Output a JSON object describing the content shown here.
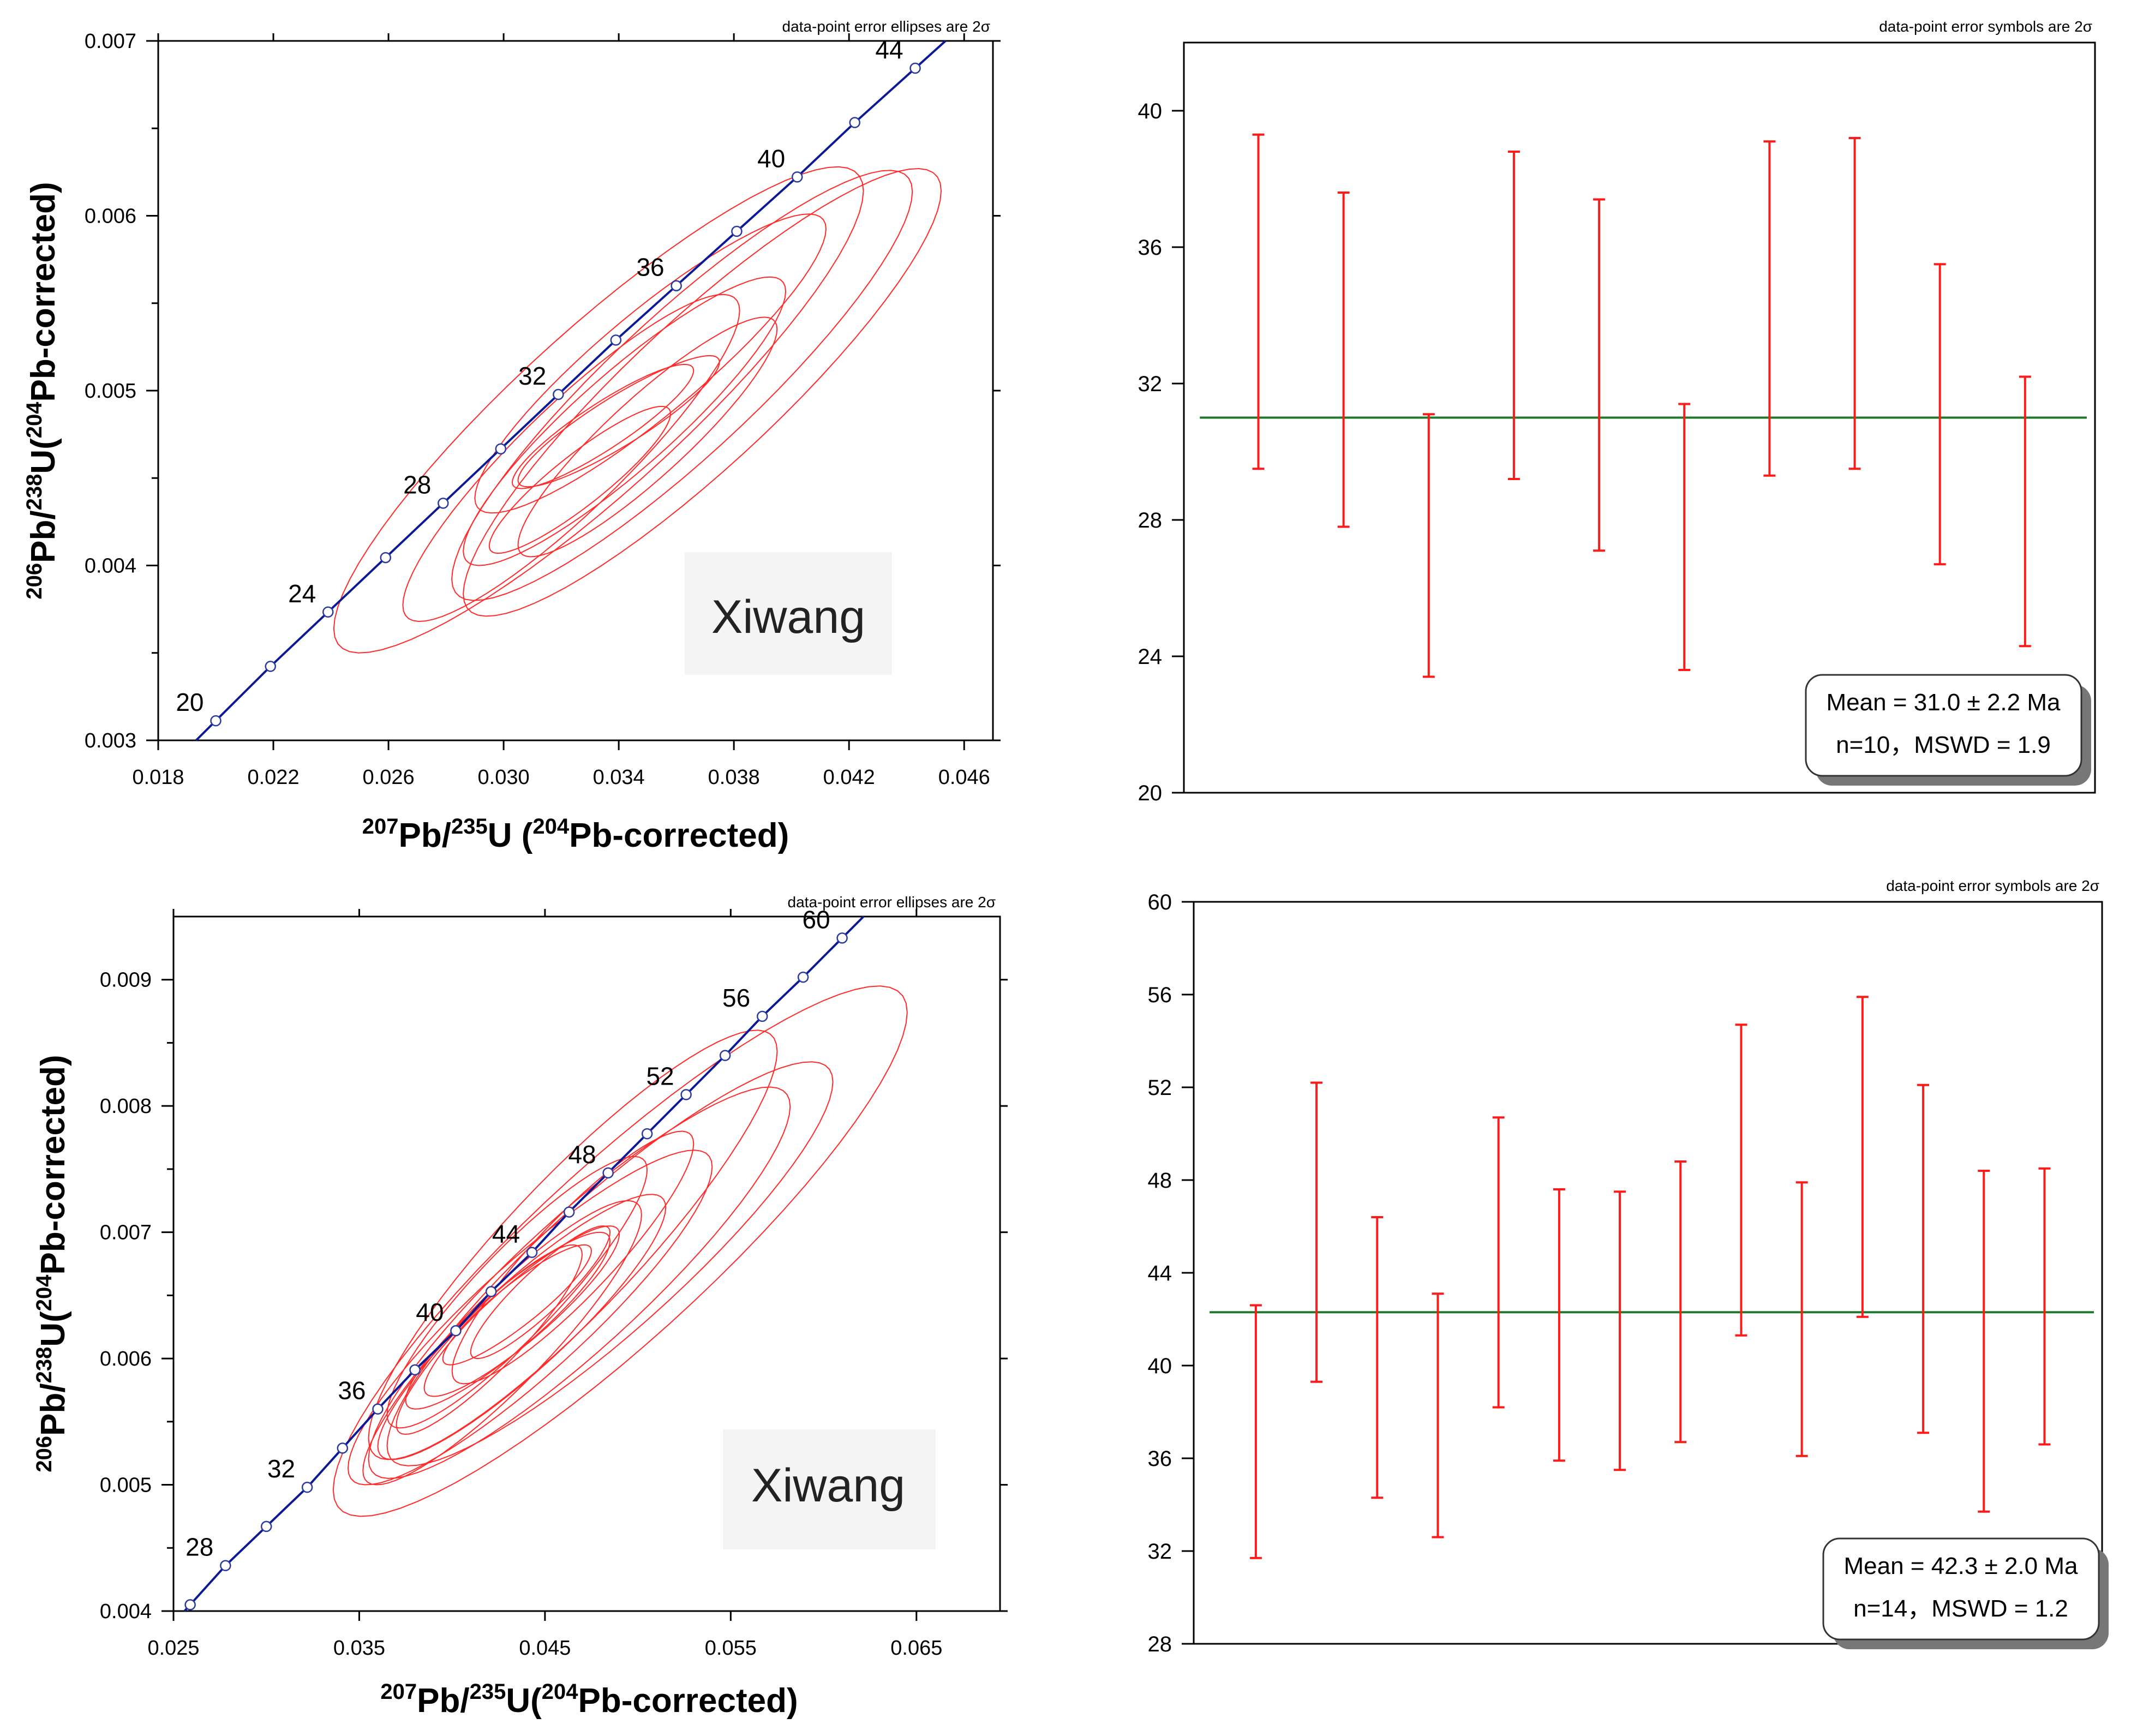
{
  "colors": {
    "concordia": "#0a1a96",
    "marker_fill": "#ffffff",
    "marker_stroke": "#2a3aa0",
    "ellipse": "#ff2a2a",
    "error_bar": "#ff1a1a",
    "mean_line": "#1d7a2a",
    "axis": "#000000",
    "watermark_bg": "#f4f4f4"
  },
  "chart_data": [
    {
      "id": "concordia_top",
      "type": "scatter",
      "subtype": "concordia",
      "note": "data-point error ellipses are 2σ",
      "sample_label": "Xiwang",
      "xlabel": {
        "base": "Pb/",
        "iso1": "207",
        "iso2": "235",
        "u": "U (",
        "iso3": "204",
        "rest": "Pb-corrected)"
      },
      "ylabel": {
        "iso1": "206",
        "base": "Pb/",
        "iso2": "238",
        "u": "U(",
        "iso3": "204",
        "rest": "Pb-corrected)"
      },
      "xlim": [
        0.018,
        0.047
      ],
      "ylim": [
        0.003,
        0.007
      ],
      "x_ticks": [
        "0.018",
        "0.022",
        "0.026",
        "0.030",
        "0.034",
        "0.038",
        "0.042",
        "0.046"
      ],
      "y_ticks": [
        "0.003",
        "0.004",
        "0.005",
        "0.006",
        "0.007"
      ],
      "concordia_labels": [
        {
          "age": "20",
          "x": 0.02,
          "y": 0.003112
        },
        {
          "age": "24",
          "x": 0.0239,
          "y": 0.003734
        },
        {
          "age": "28",
          "x": 0.0279,
          "y": 0.004356
        },
        {
          "age": "32",
          "x": 0.0319,
          "y": 0.004978
        },
        {
          "age": "36",
          "x": 0.036,
          "y": 0.0056
        },
        {
          "age": "40",
          "x": 0.0402,
          "y": 0.006222
        },
        {
          "age": "44",
          "x": 0.0443,
          "y": 0.006844
        }
      ],
      "concordia_markers": [
        {
          "x": 0.02,
          "y": 0.003112
        },
        {
          "x": 0.0219,
          "y": 0.003423
        },
        {
          "x": 0.0239,
          "y": 0.003734
        },
        {
          "x": 0.0259,
          "y": 0.004045
        },
        {
          "x": 0.0279,
          "y": 0.004356
        },
        {
          "x": 0.0299,
          "y": 0.004667
        },
        {
          "x": 0.0319,
          "y": 0.004978
        },
        {
          "x": 0.0339,
          "y": 0.005289
        },
        {
          "x": 0.036,
          "y": 0.0056
        },
        {
          "x": 0.0381,
          "y": 0.005911
        },
        {
          "x": 0.0402,
          "y": 0.006222
        },
        {
          "x": 0.0422,
          "y": 0.006533
        },
        {
          "x": 0.0443,
          "y": 0.006844
        }
      ],
      "ellipses": [
        {
          "x0": 0.0241,
          "x1": 0.0425,
          "y0": 0.0035,
          "y1": 0.00628
        },
        {
          "x0": 0.0265,
          "x1": 0.0382,
          "y0": 0.00368,
          "y1": 0.00555
        },
        {
          "x0": 0.0282,
          "x1": 0.0442,
          "y0": 0.0038,
          "y1": 0.00626
        },
        {
          "x0": 0.0286,
          "x1": 0.0452,
          "y0": 0.00371,
          "y1": 0.00627
        },
        {
          "x0": 0.0286,
          "x1": 0.0398,
          "y0": 0.004,
          "y1": 0.00565
        },
        {
          "x0": 0.029,
          "x1": 0.0412,
          "y0": 0.0043,
          "y1": 0.00601
        },
        {
          "x0": 0.0295,
          "x1": 0.0358,
          "y0": 0.00407,
          "y1": 0.00491
        },
        {
          "x0": 0.0305,
          "x1": 0.0395,
          "y0": 0.00405,
          "y1": 0.00542
        },
        {
          "x0": 0.0303,
          "x1": 0.0366,
          "y0": 0.00444,
          "y1": 0.00515
        },
        {
          "x0": 0.0305,
          "x1": 0.0375,
          "y0": 0.00445,
          "y1": 0.0052
        }
      ]
    },
    {
      "id": "mean_top",
      "type": "errorbar",
      "note": "data-point error symbols are 2σ",
      "ylim": [
        20,
        42
      ],
      "y_ticks": [
        "20",
        "24",
        "28",
        "32",
        "36",
        "40"
      ],
      "mean": 31.0,
      "bars": [
        {
          "low": 29.5,
          "high": 39.3
        },
        {
          "low": 27.8,
          "high": 37.6
        },
        {
          "low": 23.4,
          "high": 31.1
        },
        {
          "low": 29.2,
          "high": 38.8
        },
        {
          "low": 27.1,
          "high": 37.4
        },
        {
          "low": 23.6,
          "high": 31.4
        },
        {
          "low": 29.3,
          "high": 39.1
        },
        {
          "low": 29.5,
          "high": 39.2
        },
        {
          "low": 26.7,
          "high": 35.5
        },
        {
          "low": 24.3,
          "high": 32.2
        }
      ],
      "stats_line1": "Mean = 31.0 ± 2.2 Ma",
      "stats_line2": "n=10，MSWD = 1.9"
    },
    {
      "id": "concordia_bottom",
      "type": "scatter",
      "subtype": "concordia",
      "note": "data-point error ellipses are 2σ",
      "sample_label": "Xiwang",
      "xlabel": {
        "base": "Pb/",
        "iso1": "207",
        "iso2": "235",
        "u": "U(",
        "iso3": "204",
        "rest": "Pb-corrected)"
      },
      "ylabel": {
        "iso1": "206",
        "base": "Pb/",
        "iso2": "238",
        "u": "U(",
        "iso3": "204",
        "rest": "Pb-corrected)"
      },
      "xlim": [
        0.025,
        0.0695
      ],
      "ylim": [
        0.004,
        0.0095
      ],
      "x_ticks": [
        "0.025",
        "0.035",
        "0.045",
        "0.055",
        "0.065"
      ],
      "y_ticks": [
        "0.004",
        "0.005",
        "0.006",
        "0.007",
        "0.008",
        "0.009"
      ],
      "concordia_labels": [
        {
          "age": "28",
          "x": 0.0278,
          "y": 0.00436
        },
        {
          "age": "32",
          "x": 0.0322,
          "y": 0.00498
        },
        {
          "age": "36",
          "x": 0.036,
          "y": 0.0056
        },
        {
          "age": "40",
          "x": 0.0402,
          "y": 0.00622
        },
        {
          "age": "44",
          "x": 0.0443,
          "y": 0.00684
        },
        {
          "age": "48",
          "x": 0.0484,
          "y": 0.00747
        },
        {
          "age": "52",
          "x": 0.0526,
          "y": 0.00809
        },
        {
          "age": "56",
          "x": 0.0567,
          "y": 0.00871
        },
        {
          "age": "60",
          "x": 0.061,
          "y": 0.00933
        }
      ],
      "concordia_markers": [
        {
          "x": 0.0259,
          "y": 0.00405
        },
        {
          "x": 0.0278,
          "y": 0.00436
        },
        {
          "x": 0.03,
          "y": 0.00467
        },
        {
          "x": 0.0322,
          "y": 0.00498
        },
        {
          "x": 0.0341,
          "y": 0.00529
        },
        {
          "x": 0.036,
          "y": 0.0056
        },
        {
          "x": 0.038,
          "y": 0.00591
        },
        {
          "x": 0.0402,
          "y": 0.00622
        },
        {
          "x": 0.0421,
          "y": 0.00653
        },
        {
          "x": 0.0443,
          "y": 0.00684
        },
        {
          "x": 0.0463,
          "y": 0.00716
        },
        {
          "x": 0.0484,
          "y": 0.00747
        },
        {
          "x": 0.0505,
          "y": 0.00778
        },
        {
          "x": 0.0526,
          "y": 0.00809
        },
        {
          "x": 0.0547,
          "y": 0.0084
        },
        {
          "x": 0.0567,
          "y": 0.00871
        },
        {
          "x": 0.0589,
          "y": 0.00902
        },
        {
          "x": 0.061,
          "y": 0.00933
        }
      ],
      "ellipses": [
        {
          "x0": 0.0336,
          "x1": 0.0645,
          "y0": 0.00475,
          "y1": 0.00895
        },
        {
          "x0": 0.0344,
          "x1": 0.054,
          "y0": 0.005,
          "y1": 0.00765
        },
        {
          "x0": 0.0355,
          "x1": 0.0582,
          "y0": 0.00505,
          "y1": 0.00815
        },
        {
          "x0": 0.0352,
          "x1": 0.0502,
          "y0": 0.005,
          "y1": 0.00725
        },
        {
          "x0": 0.036,
          "x1": 0.0515,
          "y0": 0.0052,
          "y1": 0.0073
        },
        {
          "x0": 0.0365,
          "x1": 0.0505,
          "y0": 0.00545,
          "y1": 0.0076
        },
        {
          "x0": 0.0365,
          "x1": 0.0605,
          "y0": 0.00515,
          "y1": 0.00835
        },
        {
          "x0": 0.0375,
          "x1": 0.0485,
          "y0": 0.0056,
          "y1": 0.007
        },
        {
          "x0": 0.0385,
          "x1": 0.049,
          "y0": 0.0057,
          "y1": 0.00705
        },
        {
          "x0": 0.0395,
          "x1": 0.0475,
          "y0": 0.00595,
          "y1": 0.0069
        },
        {
          "x0": 0.0355,
          "x1": 0.0575,
          "y0": 0.0052,
          "y1": 0.0086
        },
        {
          "x0": 0.041,
          "x1": 0.0485,
          "y0": 0.006,
          "y1": 0.00705
        },
        {
          "x0": 0.04,
          "x1": 0.053,
          "y0": 0.0058,
          "y1": 0.0078
        },
        {
          "x0": 0.037,
          "x1": 0.047,
          "y0": 0.0054,
          "y1": 0.0069
        }
      ]
    },
    {
      "id": "mean_bottom",
      "type": "errorbar",
      "note": "data-point error symbols are 2σ",
      "ylim": [
        28,
        60
      ],
      "y_ticks": [
        "28",
        "32",
        "36",
        "40",
        "44",
        "48",
        "52",
        "56",
        "60"
      ],
      "mean": 42.3,
      "bars": [
        {
          "low": 31.7,
          "high": 42.6
        },
        {
          "low": 39.3,
          "high": 52.2
        },
        {
          "low": 34.3,
          "high": 46.4
        },
        {
          "low": 32.6,
          "high": 43.1
        },
        {
          "low": 38.2,
          "high": 50.7
        },
        {
          "low": 35.9,
          "high": 47.6
        },
        {
          "low": 35.5,
          "high": 47.5
        },
        {
          "low": 36.7,
          "high": 48.8
        },
        {
          "low": 41.3,
          "high": 54.7
        },
        {
          "low": 36.1,
          "high": 47.9
        },
        {
          "low": 42.1,
          "high": 55.9
        },
        {
          "low": 37.1,
          "high": 52.1
        },
        {
          "low": 33.7,
          "high": 48.4
        },
        {
          "low": 36.6,
          "high": 48.5
        }
      ],
      "stats_line1": "Mean = 42.3 ± 2.0 Ma",
      "stats_line2": "n=14，MSWD = 1.2"
    }
  ]
}
